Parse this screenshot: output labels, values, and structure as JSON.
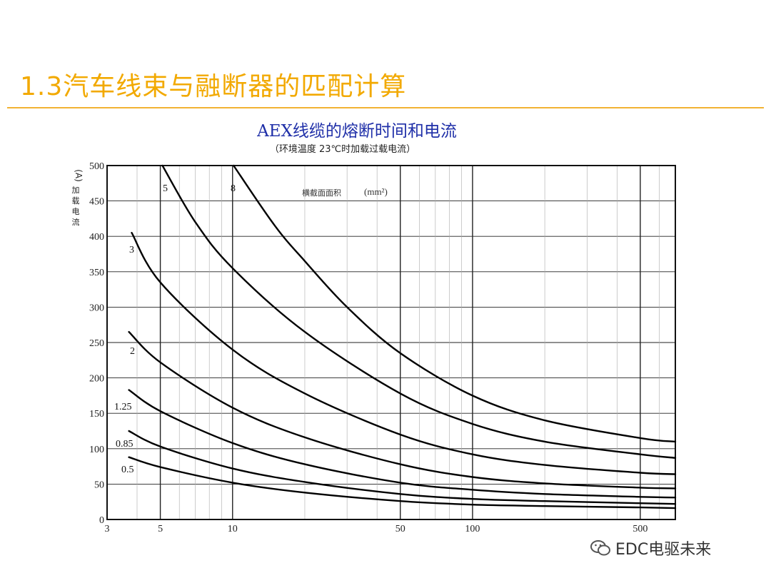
{
  "slide": {
    "title": "1.3汽车线束与融断器的匹配计算",
    "accent_color": "#f2a900"
  },
  "chart_data": {
    "type": "line",
    "title": "AEX线缆的熔断时间和电流",
    "subtitle": "（环境温度 23℃时加载过载电流）",
    "ylabel": "加载电流",
    "yunit": "(A)",
    "xlabel": "",
    "annotation": "横截面面积",
    "annotation_unit": "(mm²)",
    "x_scale": "log",
    "xlim": [
      3,
      700
    ],
    "ylim": [
      0,
      500
    ],
    "xticks": [
      3,
      5,
      10,
      50,
      100,
      500
    ],
    "yticks": [
      0,
      50,
      100,
      150,
      200,
      250,
      300,
      350,
      400,
      450,
      500
    ],
    "grid": true,
    "line_color": "#000000",
    "series": [
      {
        "name": "0.5",
        "x": [
          3.7,
          5,
          10,
          20,
          50,
          100,
          200,
          500,
          700
        ],
        "y": [
          88,
          74,
          52,
          38,
          26,
          21,
          19,
          17,
          16
        ]
      },
      {
        "name": "0.85",
        "x": [
          3.7,
          5,
          10,
          20,
          50,
          100,
          200,
          500,
          700
        ],
        "y": [
          125,
          103,
          72,
          53,
          36,
          29,
          26,
          23,
          22
        ]
      },
      {
        "name": "1.25",
        "x": [
          3.7,
          5,
          10,
          20,
          50,
          100,
          200,
          500,
          700
        ],
        "y": [
          183,
          153,
          108,
          78,
          52,
          42,
          36,
          32,
          31
        ]
      },
      {
        "name": "2",
        "x": [
          3.7,
          5,
          10,
          20,
          50,
          100,
          200,
          500,
          700
        ],
        "y": [
          265,
          222,
          158,
          116,
          78,
          60,
          51,
          45,
          44
        ]
      },
      {
        "name": "3",
        "x": [
          3.8,
          5,
          10,
          20,
          50,
          100,
          200,
          500,
          700
        ],
        "y": [
          405,
          335,
          240,
          178,
          120,
          92,
          77,
          66,
          64
        ]
      },
      {
        "name": "5",
        "x": [
          5.1,
          7,
          10,
          20,
          50,
          100,
          200,
          500,
          700
        ],
        "y": [
          500,
          420,
          355,
          265,
          178,
          135,
          110,
          92,
          87
        ]
      },
      {
        "name": "8",
        "x": [
          10.1,
          15,
          20,
          30,
          50,
          100,
          200,
          500,
          700
        ],
        "y": [
          500,
          415,
          365,
          300,
          235,
          175,
          140,
          115,
          110
        ]
      }
    ]
  },
  "watermark": {
    "text": "EDC电驱未来"
  }
}
